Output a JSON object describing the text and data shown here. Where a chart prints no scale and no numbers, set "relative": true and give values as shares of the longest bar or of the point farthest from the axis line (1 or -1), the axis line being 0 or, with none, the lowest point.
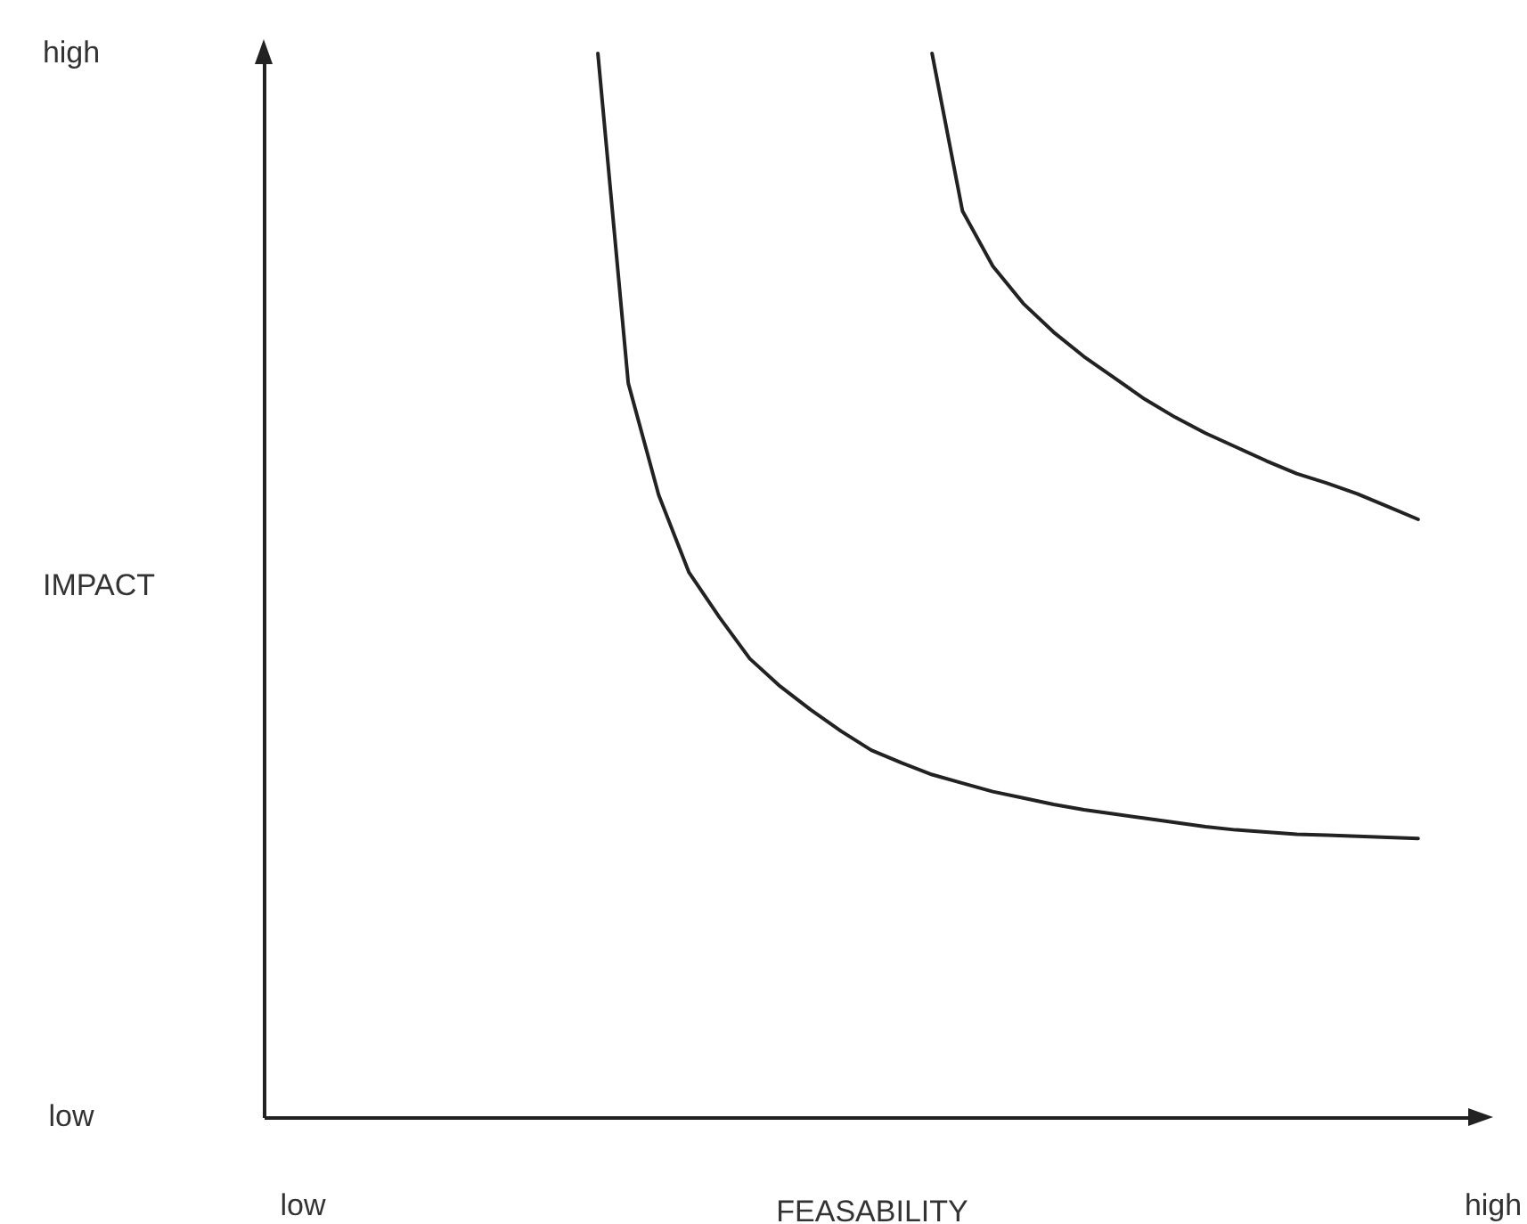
{
  "chart_data": {
    "type": "line",
    "relative": true,
    "xlabel": "FEASABILITY",
    "ylabel": "IMPACT",
    "categories": [
      null,
      null,
      null,
      null,
      null,
      null,
      null,
      null,
      null,
      null,
      null,
      null,
      null,
      null,
      null,
      null,
      null,
      null,
      null,
      null,
      null,
      null,
      null,
      null,
      null,
      null,
      null,
      null,
      null,
      null,
      null,
      null,
      null,
      null,
      null,
      null,
      null,
      null,
      null,
      null,
      null
    ],
    "annotations": [
      "high",
      "low",
      "low",
      "high"
    ],
    "series": [
      {
        "color": "#222222",
        "values": [
          null,
          null,
          null,
          null,
          null,
          null,
          null,
          null,
          null,
          null,
          null,
          1.0,
          0.69,
          0.585,
          0.512,
          0.47,
          0.431,
          0.405,
          0.383,
          0.363,
          0.345,
          0.333,
          0.322,
          0.314,
          0.306,
          0.3,
          0.294,
          0.289,
          0.285,
          0.281,
          0.277,
          0.273,
          0.27,
          0.268,
          0.266,
          0.265,
          0.264,
          0.263,
          0.262,
          null,
          null
        ]
      },
      {
        "color": "#222222",
        "values": [
          null,
          null,
          null,
          null,
          null,
          null,
          null,
          null,
          null,
          null,
          null,
          null,
          null,
          null,
          null,
          null,
          null,
          null,
          null,
          null,
          null,
          null,
          1.0,
          0.852,
          0.8,
          0.765,
          0.738,
          0.715,
          0.695,
          0.675,
          0.658,
          0.643,
          0.63,
          0.617,
          0.605,
          0.596,
          0.586,
          0.574,
          0.562,
          null,
          null
        ]
      }
    ]
  }
}
